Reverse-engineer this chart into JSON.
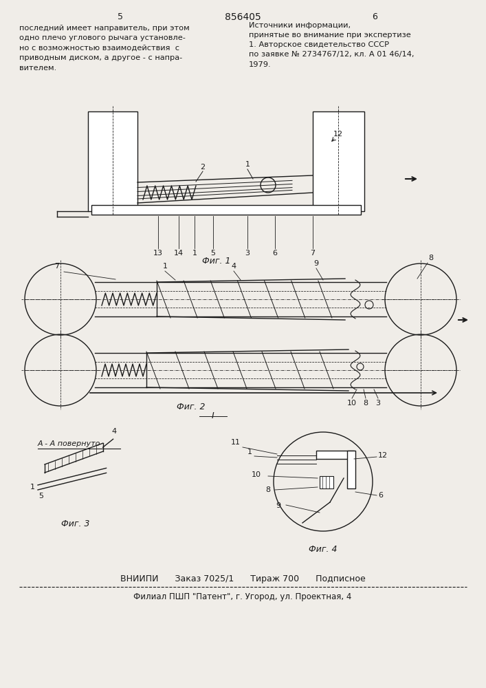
{
  "bg_color": "#f0ede8",
  "title_patent": "856405",
  "left_col_number": "5",
  "right_col_number": "6",
  "left_text": "последний имеет направитель, при этом\nодно плечо углового рычага установле-\nно с возможностью взаимодействия  с\nприводным диском, а другое - с напра-\nвителем.",
  "right_title": "Источники информации,",
  "right_subtitle": "принятые во внимание при экспертизе",
  "right_body": "1. Авторское свидетельство СССР\nпо заявке № 2734767/12, кл. А 01 46/14,\n1979.",
  "fig1_label": "Фиг. 1",
  "fig2_label": "Фиг. 2",
  "fig3_label": "Фиг. 3",
  "fig4_label": "Фиг. 4",
  "fig3_section_label": "А - А повернуто",
  "bottom_line1": "ВНИИПИ      Заказ 7025/1      Тираж 700      Подписное",
  "bottom_line2": "Филиал ПШП \"Патент\", г. Угород, ул. Проектная, 4"
}
